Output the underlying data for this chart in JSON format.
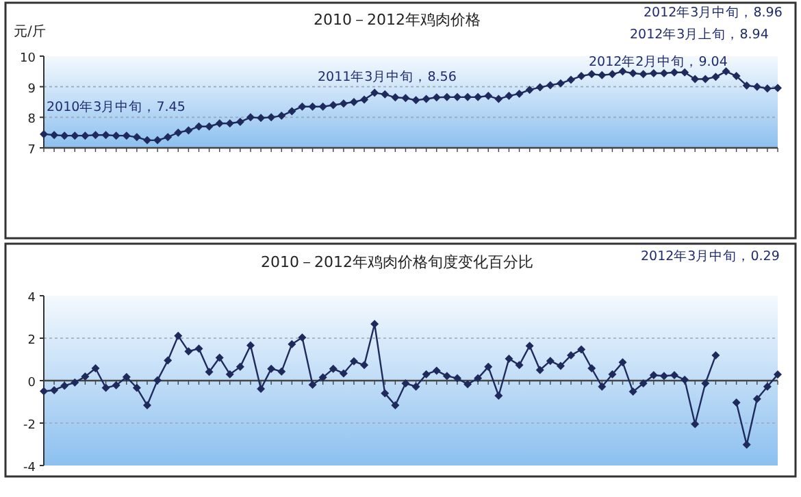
{
  "chart_data": [
    {
      "type": "line",
      "title": "2010－2012年鸡肉价格",
      "ylabel": "元/斤",
      "tick_labels": "y",
      "grid": "y",
      "marker": "diamond",
      "line_style": "solid",
      "ylim": [
        7,
        10
      ],
      "yticks": [
        7,
        8,
        9,
        10
      ],
      "annotations": [
        "2010年3月中旬，7.45",
        "2011年3月中旬，8.56",
        "2012年2月中旬，9.04",
        "2012年3月上旬，8.94",
        "2012年3月中旬，8.96"
      ],
      "categories": [
        null,
        null,
        null,
        null,
        null,
        null,
        null,
        null,
        null,
        null,
        null,
        null,
        null,
        null,
        null,
        null,
        null,
        null,
        null,
        null,
        null,
        null,
        null,
        null,
        null,
        null,
        null,
        null,
        null,
        null,
        null,
        null,
        null,
        null,
        null,
        null,
        null,
        null,
        null,
        null,
        null,
        null,
        null,
        null,
        null,
        null,
        null,
        null,
        null,
        null,
        null,
        null,
        null,
        null,
        null,
        null,
        null,
        null,
        null,
        null,
        null,
        null,
        null,
        null,
        null,
        null,
        null,
        null,
        null,
        null,
        null,
        null
      ],
      "series": [
        {
          "color": "#1f2a5c",
          "values": [
            7.45,
            7.42,
            7.4,
            7.4,
            7.4,
            7.42,
            7.42,
            7.4,
            7.4,
            7.35,
            7.25,
            7.25,
            7.35,
            7.5,
            7.57,
            7.7,
            7.7,
            7.8,
            7.8,
            7.85,
            8.0,
            7.98,
            8.0,
            8.05,
            8.2,
            8.35,
            8.35,
            8.35,
            8.4,
            8.45,
            8.5,
            8.58,
            8.8,
            8.75,
            8.65,
            8.63,
            8.56,
            8.6,
            8.65,
            8.66,
            8.66,
            8.66,
            8.66,
            8.7,
            8.6,
            8.7,
            8.77,
            8.9,
            8.98,
            9.05,
            9.11,
            9.23,
            9.35,
            9.41,
            9.38,
            9.41,
            9.5,
            9.44,
            9.41,
            9.44,
            9.44,
            9.47,
            9.47,
            9.25,
            9.25,
            9.32,
            9.5,
            9.35,
            9.04,
            9.0,
            8.94,
            8.96
          ]
        }
      ]
    },
    {
      "type": "line",
      "title": "2010－2012年鸡肉价格旬度变化百分比",
      "tick_labels": "y",
      "grid": "y",
      "marker": "diamond",
      "line_style": "solid",
      "ylim": [
        -4,
        4
      ],
      "yticks": [
        -4,
        -2,
        0,
        2,
        4
      ],
      "annotations": [
        "2012年3月中旬，0.29"
      ],
      "categories": [
        null,
        null,
        null,
        null,
        null,
        null,
        null,
        null,
        null,
        null,
        null,
        null,
        null,
        null,
        null,
        null,
        null,
        null,
        null,
        null,
        null,
        null,
        null,
        null,
        null,
        null,
        null,
        null,
        null,
        null,
        null,
        null,
        null,
        null,
        null,
        null,
        null,
        null,
        null,
        null,
        null,
        null,
        null,
        null,
        null,
        null,
        null,
        null,
        null,
        null,
        null,
        null,
        null,
        null,
        null,
        null,
        null,
        null,
        null,
        null,
        null,
        null,
        null,
        null,
        null,
        null,
        null,
        null,
        null,
        null,
        null,
        null
      ],
      "series": [
        {
          "color": "#1f2a5c",
          "values": [
            -0.5,
            -0.45,
            -0.24,
            -0.09,
            0.19,
            0.58,
            -0.34,
            -0.22,
            0.17,
            -0.34,
            -1.16,
            0.02,
            0.95,
            2.11,
            1.38,
            1.51,
            0.41,
            1.08,
            0.3,
            0.65,
            1.66,
            -0.39,
            0.56,
            0.43,
            1.72,
            2.03,
            -0.19,
            0.15,
            0.56,
            0.34,
            0.91,
            0.73,
            2.67,
            -0.6,
            -1.16,
            -0.13,
            -0.28,
            0.3,
            0.47,
            0.22,
            0.11,
            -0.17,
            0.11,
            0.65,
            -0.71,
            1.03,
            0.73,
            1.64,
            0.5,
            0.93,
            0.69,
            1.19,
            1.47,
            0.58,
            -0.28,
            0.3,
            0.86,
            -0.52,
            -0.13,
            0.26,
            0.22,
            0.26,
            0.04,
            -2.05,
            -0.13,
            1.19,
            null,
            -1.03,
            -3.02,
            -0.86,
            -0.28,
            0.29
          ]
        }
      ]
    }
  ]
}
